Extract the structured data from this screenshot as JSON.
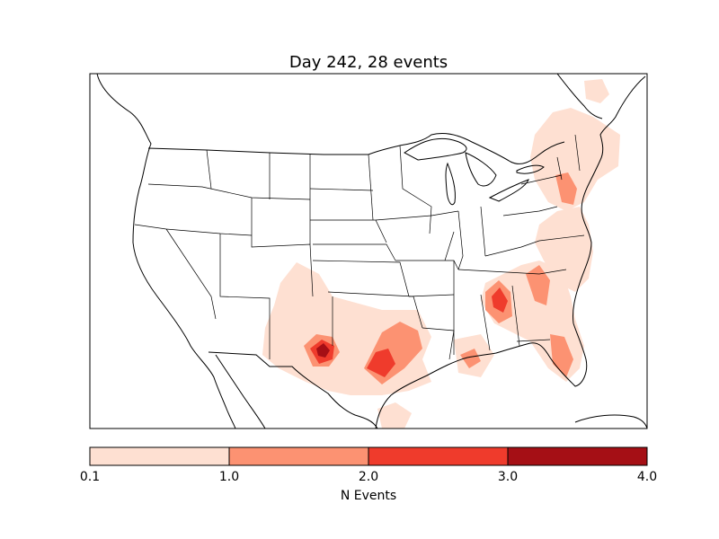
{
  "map": {
    "title": "Day 242, 28 events",
    "colors": {
      "level1": "#fee0d2",
      "level2": "#fc9272",
      "level3": "#ef3b2c",
      "level4": "#a50f15",
      "coast": "#000000"
    }
  },
  "colorbar": {
    "label": "N Events",
    "ticks": [
      "0.1",
      "1.0",
      "2.0",
      "3.0",
      "4.0"
    ],
    "colors": [
      "#fee0d2",
      "#fc9272",
      "#ef3b2c",
      "#a50f15"
    ]
  }
}
